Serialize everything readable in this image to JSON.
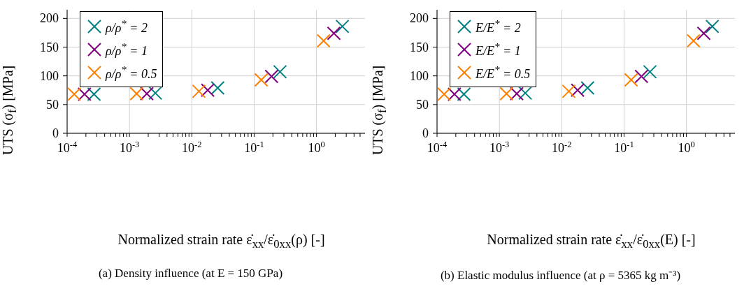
{
  "chart_data": [
    {
      "type": "scatter",
      "xlabel": "Normalized strain rate ε̇$_{xx}$/ε̇$_{0xx}$(ρ) [-]",
      "ylabel": "UTS (σ$_{f}$) [MPa]",
      "log": "x",
      "grid": true,
      "legend": "top left",
      "marker": "cross",
      "xlim": [
        0.0001,
        6
      ],
      "ylim": [
        0,
        215
      ],
      "xticks": [
        {
          "value": 0.0001,
          "label": "10$^{-4}$"
        },
        {
          "value": 0.0002,
          "label": null
        },
        {
          "value": 0.0003,
          "label": null
        },
        {
          "value": 0.0004,
          "label": null
        },
        {
          "value": 0.0005,
          "label": null
        },
        {
          "value": 0.0006,
          "label": null
        },
        {
          "value": 0.0007,
          "label": null
        },
        {
          "value": 0.0008,
          "label": null
        },
        {
          "value": 0.0009,
          "label": null
        },
        {
          "value": 0.001,
          "label": "10$^{-3}$"
        },
        {
          "value": 0.002,
          "label": null
        },
        {
          "value": 0.003,
          "label": null
        },
        {
          "value": 0.004,
          "label": null
        },
        {
          "value": 0.005,
          "label": null
        },
        {
          "value": 0.006,
          "label": null
        },
        {
          "value": 0.007,
          "label": null
        },
        {
          "value": 0.008,
          "label": null
        },
        {
          "value": 0.009,
          "label": null
        },
        {
          "value": 0.01,
          "label": "10$^{-2}$"
        },
        {
          "value": 0.02,
          "label": null
        },
        {
          "value": 0.03,
          "label": null
        },
        {
          "value": 0.04,
          "label": null
        },
        {
          "value": 0.05,
          "label": null
        },
        {
          "value": 0.06,
          "label": null
        },
        {
          "value": 0.07,
          "label": null
        },
        {
          "value": 0.08,
          "label": null
        },
        {
          "value": 0.09,
          "label": null
        },
        {
          "value": 0.1,
          "label": "10$^{-1}$"
        },
        {
          "value": 0.2,
          "label": null
        },
        {
          "value": 0.3,
          "label": null
        },
        {
          "value": 0.4,
          "label": null
        },
        {
          "value": 0.5,
          "label": null
        },
        {
          "value": 0.6,
          "label": null
        },
        {
          "value": 0.7,
          "label": null
        },
        {
          "value": 0.8,
          "label": null
        },
        {
          "value": 0.9,
          "label": null
        },
        {
          "value": 1,
          "label": "10$^{0}$"
        },
        {
          "value": 2,
          "label": null
        },
        {
          "value": 3,
          "label": null
        },
        {
          "value": 4,
          "label": null
        },
        {
          "value": 5,
          "label": null
        }
      ],
      "yticks": [
        0,
        50,
        100,
        150,
        200
      ],
      "series": [
        {
          "name": "ρ/ρ$^{*}$ = 2",
          "color": "#008080",
          "x": [
            0.00027,
            0.0026,
            0.026,
            0.26,
            2.6
          ],
          "values": [
            68,
            70,
            79,
            107,
            186
          ]
        },
        {
          "name": "ρ/ρ$^{*}$ = 1",
          "color": "#800080",
          "x": [
            0.00019,
            0.0019,
            0.018,
            0.19,
            1.9
          ],
          "values": [
            68,
            69,
            75,
            99,
            174
          ]
        },
        {
          "name": "ρ/ρ$^{*}$ = 0.5",
          "color": "#ff8000",
          "x": [
            0.00013,
            0.0013,
            0.013,
            0.13,
            1.3
          ],
          "values": [
            68,
            69,
            73,
            93,
            161
          ]
        }
      ],
      "annotations": [
        "(a) Density influence (at E = 150 GPa)"
      ]
    },
    {
      "type": "scatter",
      "xlabel": "Normalized strain rate ε̇$_{xx}$/ε̇$_{0xx}$(E) [-]",
      "ylabel": "UTS (σ$_{f}$) [MPa]",
      "log": "x",
      "grid": true,
      "legend": "top left",
      "marker": "cross",
      "xlim": [
        0.0001,
        6
      ],
      "ylim": [
        0,
        215
      ],
      "xticks": [
        {
          "value": 0.0001,
          "label": "10$^{-4}$"
        },
        {
          "value": 0.0002,
          "label": null
        },
        {
          "value": 0.0003,
          "label": null
        },
        {
          "value": 0.0004,
          "label": null
        },
        {
          "value": 0.0005,
          "label": null
        },
        {
          "value": 0.0006,
          "label": null
        },
        {
          "value": 0.0007,
          "label": null
        },
        {
          "value": 0.0008,
          "label": null
        },
        {
          "value": 0.0009,
          "label": null
        },
        {
          "value": 0.001,
          "label": "10$^{-3}$"
        },
        {
          "value": 0.002,
          "label": null
        },
        {
          "value": 0.003,
          "label": null
        },
        {
          "value": 0.004,
          "label": null
        },
        {
          "value": 0.005,
          "label": null
        },
        {
          "value": 0.006,
          "label": null
        },
        {
          "value": 0.007,
          "label": null
        },
        {
          "value": 0.008,
          "label": null
        },
        {
          "value": 0.009,
          "label": null
        },
        {
          "value": 0.01,
          "label": "10$^{-2}$"
        },
        {
          "value": 0.02,
          "label": null
        },
        {
          "value": 0.03,
          "label": null
        },
        {
          "value": 0.04,
          "label": null
        },
        {
          "value": 0.05,
          "label": null
        },
        {
          "value": 0.06,
          "label": null
        },
        {
          "value": 0.07,
          "label": null
        },
        {
          "value": 0.08,
          "label": null
        },
        {
          "value": 0.09,
          "label": null
        },
        {
          "value": 0.1,
          "label": "10$^{-1}$"
        },
        {
          "value": 0.2,
          "label": null
        },
        {
          "value": 0.3,
          "label": null
        },
        {
          "value": 0.4,
          "label": null
        },
        {
          "value": 0.5,
          "label": null
        },
        {
          "value": 0.6,
          "label": null
        },
        {
          "value": 0.7,
          "label": null
        },
        {
          "value": 0.8,
          "label": null
        },
        {
          "value": 0.9,
          "label": null
        },
        {
          "value": 1,
          "label": "10$^{0}$"
        },
        {
          "value": 2,
          "label": null
        },
        {
          "value": 3,
          "label": null
        },
        {
          "value": 4,
          "label": null
        },
        {
          "value": 5,
          "label": null
        }
      ],
      "yticks": [
        0,
        50,
        100,
        150,
        200
      ],
      "series": [
        {
          "name": "E/E$^{*}$ = 2",
          "color": "#008080",
          "x": [
            0.00027,
            0.0026,
            0.026,
            0.26,
            2.6
          ],
          "values": [
            68,
            70,
            79,
            107,
            186
          ]
        },
        {
          "name": "E/E$^{*}$ = 1",
          "color": "#800080",
          "x": [
            0.00019,
            0.0019,
            0.018,
            0.19,
            1.9
          ],
          "values": [
            68,
            69,
            75,
            99,
            174
          ]
        },
        {
          "name": "E/E$^{*}$ = 0.5",
          "color": "#ff8000",
          "x": [
            0.00013,
            0.0013,
            0.013,
            0.13,
            1.3
          ],
          "values": [
            68,
            69,
            73,
            93,
            161
          ]
        }
      ],
      "annotations": [
        "(b) Elastic modulus influence (at ρ = 5365 kg m⁻³)"
      ]
    }
  ]
}
